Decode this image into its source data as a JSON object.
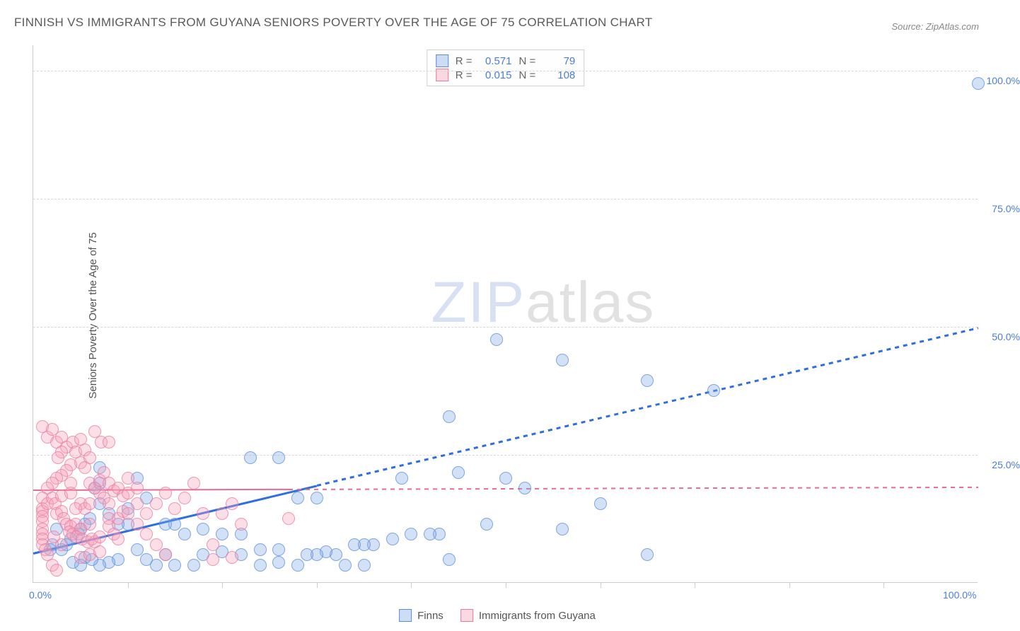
{
  "title": "FINNISH VS IMMIGRANTS FROM GUYANA SENIORS POVERTY OVER THE AGE OF 75 CORRELATION CHART",
  "source_label": "Source: ",
  "source_name": "ZipAtlas.com",
  "ylabel": "Seniors Poverty Over the Age of 75",
  "watermark_a": "ZIP",
  "watermark_b": "atlas",
  "chart": {
    "type": "scatter",
    "xlim": [
      0,
      100
    ],
    "ylim": [
      0,
      105
    ],
    "x_ticks_major": [
      0,
      100
    ],
    "x_ticks_minor": [
      10,
      20,
      30,
      40,
      50,
      60,
      70,
      80,
      90
    ],
    "x_tick_labels": [
      "0.0%",
      "100.0%"
    ],
    "y_ticks": [
      25,
      50,
      75,
      100
    ],
    "y_tick_labels": [
      "25.0%",
      "50.0%",
      "75.0%",
      "100.0%"
    ],
    "background_color": "#ffffff",
    "grid_color": "#d8d8d8",
    "series": [
      {
        "name": "Finns",
        "marker_fill": "rgba(130,170,230,0.35)",
        "marker_stroke": "rgba(90,140,220,0.7)",
        "marker_size": 18,
        "trend_color": "#2d6fe0",
        "trend_solid_xrange": [
          0,
          30
        ],
        "trend_dash_xrange": [
          30,
          100
        ],
        "trend_y_at_x0": 6,
        "trend_y_at_x100": 50,
        "R": "0.571",
        "N": "79",
        "points": [
          [
            100,
            100
          ],
          [
            65,
            42
          ],
          [
            56,
            46
          ],
          [
            72,
            40
          ],
          [
            49,
            50
          ],
          [
            39,
            23
          ],
          [
            23,
            27
          ],
          [
            26,
            27
          ],
          [
            7,
            25
          ],
          [
            6.5,
            21
          ],
          [
            7,
            22
          ],
          [
            44,
            35
          ],
          [
            28,
            19
          ],
          [
            30,
            19
          ],
          [
            45,
            24
          ],
          [
            50,
            23
          ],
          [
            52,
            21
          ],
          [
            60,
            18
          ],
          [
            43,
            12
          ],
          [
            40,
            12
          ],
          [
            42,
            12
          ],
          [
            38,
            11
          ],
          [
            36,
            10
          ],
          [
            35,
            10
          ],
          [
            34,
            10
          ],
          [
            32,
            8
          ],
          [
            31,
            8.5
          ],
          [
            30,
            8
          ],
          [
            29,
            8
          ],
          [
            28,
            6
          ],
          [
            33,
            6
          ],
          [
            35,
            6
          ],
          [
            26,
            9
          ],
          [
            24,
            9
          ],
          [
            22,
            12
          ],
          [
            20,
            12
          ],
          [
            18,
            13
          ],
          [
            16,
            12
          ],
          [
            15,
            14
          ],
          [
            14,
            14
          ],
          [
            14,
            8
          ],
          [
            22,
            8
          ],
          [
            20,
            8.5
          ],
          [
            18,
            8
          ],
          [
            44,
            7
          ],
          [
            11,
            23
          ],
          [
            12,
            19
          ],
          [
            10,
            17
          ],
          [
            10,
            14
          ],
          [
            9,
            14
          ],
          [
            8,
            16
          ],
          [
            7,
            18
          ],
          [
            6,
            15
          ],
          [
            5.5,
            14
          ],
          [
            5,
            13
          ],
          [
            4.8,
            12
          ],
          [
            4,
            11
          ],
          [
            3.5,
            10
          ],
          [
            3,
            9
          ],
          [
            2.5,
            13
          ],
          [
            2,
            10
          ],
          [
            1.8,
            9
          ],
          [
            15,
            6
          ],
          [
            17,
            6
          ],
          [
            13,
            6
          ],
          [
            12,
            7
          ],
          [
            11,
            9
          ],
          [
            9,
            7
          ],
          [
            8,
            6.5
          ],
          [
            7,
            6
          ],
          [
            6.2,
            7
          ],
          [
            5.5,
            7.5
          ],
          [
            5,
            6
          ],
          [
            4.2,
            6.5
          ],
          [
            24,
            6
          ],
          [
            26,
            6.5
          ],
          [
            48,
            14
          ],
          [
            56,
            13
          ],
          [
            65,
            8
          ]
        ]
      },
      {
        "name": "Immigrants from Guyana",
        "marker_fill": "rgba(245,160,185,0.35)",
        "marker_stroke": "rgba(235,120,155,0.7)",
        "marker_size": 18,
        "trend_color": "#e86a95",
        "trend_solid_xrange": [
          0,
          27
        ],
        "trend_dash_xrange": [
          27,
          100
        ],
        "trend_y_at_x0": 18.2,
        "trend_y_at_x100": 18.8,
        "R": "0.015",
        "N": "108",
        "points": [
          [
            1,
            33
          ],
          [
            1.5,
            31
          ],
          [
            2,
            32.5
          ],
          [
            2.5,
            30
          ],
          [
            3,
            31
          ],
          [
            3.5,
            29
          ],
          [
            4.2,
            30
          ],
          [
            3,
            28
          ],
          [
            4.5,
            28
          ],
          [
            5,
            30.5
          ],
          [
            5.5,
            28.5
          ],
          [
            6.5,
            32
          ],
          [
            7.2,
            30
          ],
          [
            8,
            30
          ],
          [
            5,
            26
          ],
          [
            5.5,
            25
          ],
          [
            6,
            27
          ],
          [
            4,
            25.5
          ],
          [
            3.5,
            24.5
          ],
          [
            3,
            23.5
          ],
          [
            2.5,
            23
          ],
          [
            2,
            22
          ],
          [
            1.5,
            21
          ],
          [
            1,
            19
          ],
          [
            1,
            17
          ],
          [
            1,
            16.5
          ],
          [
            1,
            15.5
          ],
          [
            1,
            14.5
          ],
          [
            1,
            13
          ],
          [
            1,
            12
          ],
          [
            1,
            11
          ],
          [
            1,
            10
          ],
          [
            1.3,
            9
          ],
          [
            1.5,
            8
          ],
          [
            2,
            6
          ],
          [
            2.5,
            5
          ],
          [
            1.5,
            18
          ],
          [
            2,
            19
          ],
          [
            2.3,
            18
          ],
          [
            2.5,
            16
          ],
          [
            3,
            16.5
          ],
          [
            3.2,
            15
          ],
          [
            3.5,
            14
          ],
          [
            4,
            13.5
          ],
          [
            4.5,
            14
          ],
          [
            3.8,
            12.5
          ],
          [
            4.2,
            12
          ],
          [
            5,
            18
          ],
          [
            5.5,
            17
          ],
          [
            6,
            18
          ],
          [
            5,
            13
          ],
          [
            4.6,
            11.5
          ],
          [
            5.2,
            11
          ],
          [
            5.8,
            10.5
          ],
          [
            6.2,
            11
          ],
          [
            6.5,
            10.5
          ],
          [
            7,
            11.5
          ],
          [
            7,
            20
          ],
          [
            7.5,
            19
          ],
          [
            8,
            18
          ],
          [
            8,
            15
          ],
          [
            8,
            13.5
          ],
          [
            8.5,
            12
          ],
          [
            9,
            15
          ],
          [
            9.5,
            16.5
          ],
          [
            10,
            16
          ],
          [
            6,
            22
          ],
          [
            6.5,
            21
          ],
          [
            7,
            22.5
          ],
          [
            7.5,
            24
          ],
          [
            8,
            22
          ],
          [
            8.5,
            20.5
          ],
          [
            9,
            21
          ],
          [
            9.5,
            19.5
          ],
          [
            10,
            20
          ],
          [
            10,
            23
          ],
          [
            11,
            21
          ],
          [
            11,
            18
          ],
          [
            11,
            14
          ],
          [
            12,
            16
          ],
          [
            13,
            18
          ],
          [
            13,
            10
          ],
          [
            14,
            20
          ],
          [
            15,
            17
          ],
          [
            16,
            19
          ],
          [
            17,
            22
          ],
          [
            14,
            8
          ],
          [
            18,
            16
          ],
          [
            19,
            10
          ],
          [
            20,
            16
          ],
          [
            21,
            18
          ],
          [
            22,
            14
          ],
          [
            19,
            7
          ],
          [
            21,
            7.5
          ],
          [
            5,
            7.5
          ],
          [
            6,
            8
          ],
          [
            7,
            8.5
          ],
          [
            3,
            10
          ],
          [
            2.2,
            11.5
          ],
          [
            6,
            14
          ],
          [
            9,
            11
          ],
          [
            12,
            12
          ],
          [
            3,
            19.5
          ],
          [
            4,
            20
          ],
          [
            4.5,
            17
          ],
          [
            27,
            15
          ],
          [
            2.6,
            27
          ],
          [
            4,
            22
          ]
        ]
      }
    ]
  },
  "stats_labels": {
    "R": "R =",
    "N": "N ="
  },
  "bottom_legend": [
    "Finns",
    "Immigrants from Guyana"
  ]
}
